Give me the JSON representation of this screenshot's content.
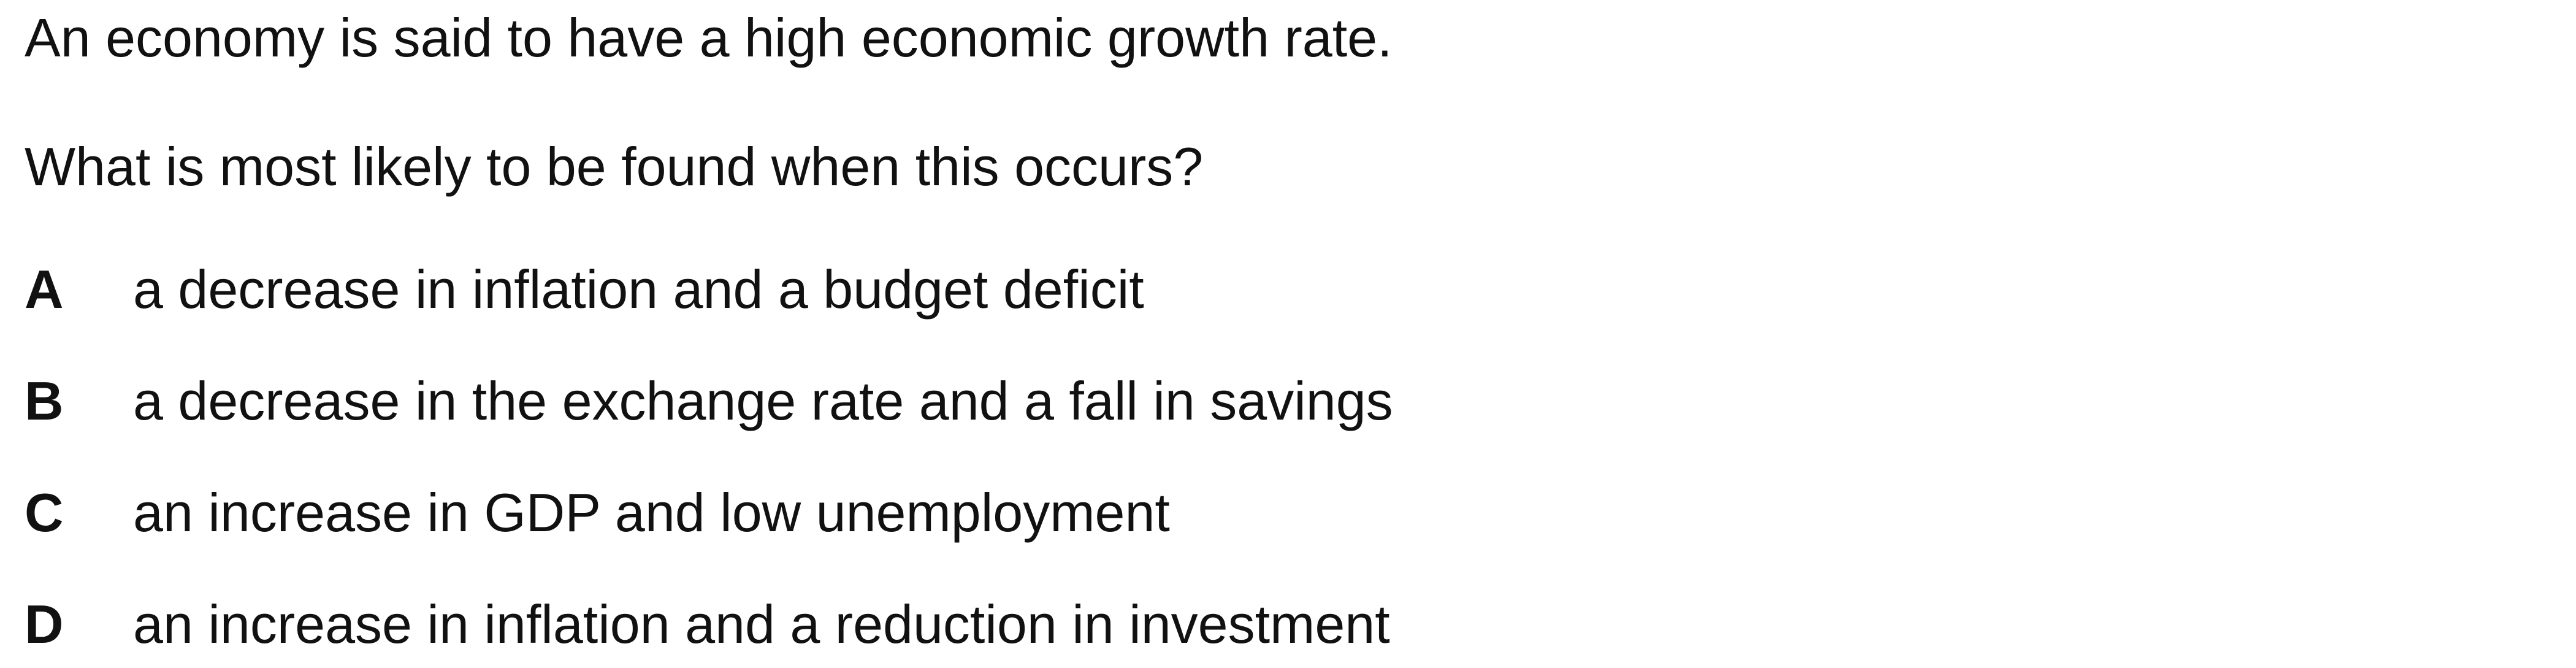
{
  "stem": "An economy is said to have a high economic growth rate.",
  "question": "What is most likely to be found when this occurs?",
  "options": [
    {
      "letter": "A",
      "text": "a decrease in inflation and a budget deficit"
    },
    {
      "letter": "B",
      "text": "a decrease in the exchange rate and a fall in savings"
    },
    {
      "letter": "C",
      "text": "an increase in GDP and low unemployment"
    },
    {
      "letter": "D",
      "text": "an increase in inflation and a reduction in investment"
    }
  ]
}
